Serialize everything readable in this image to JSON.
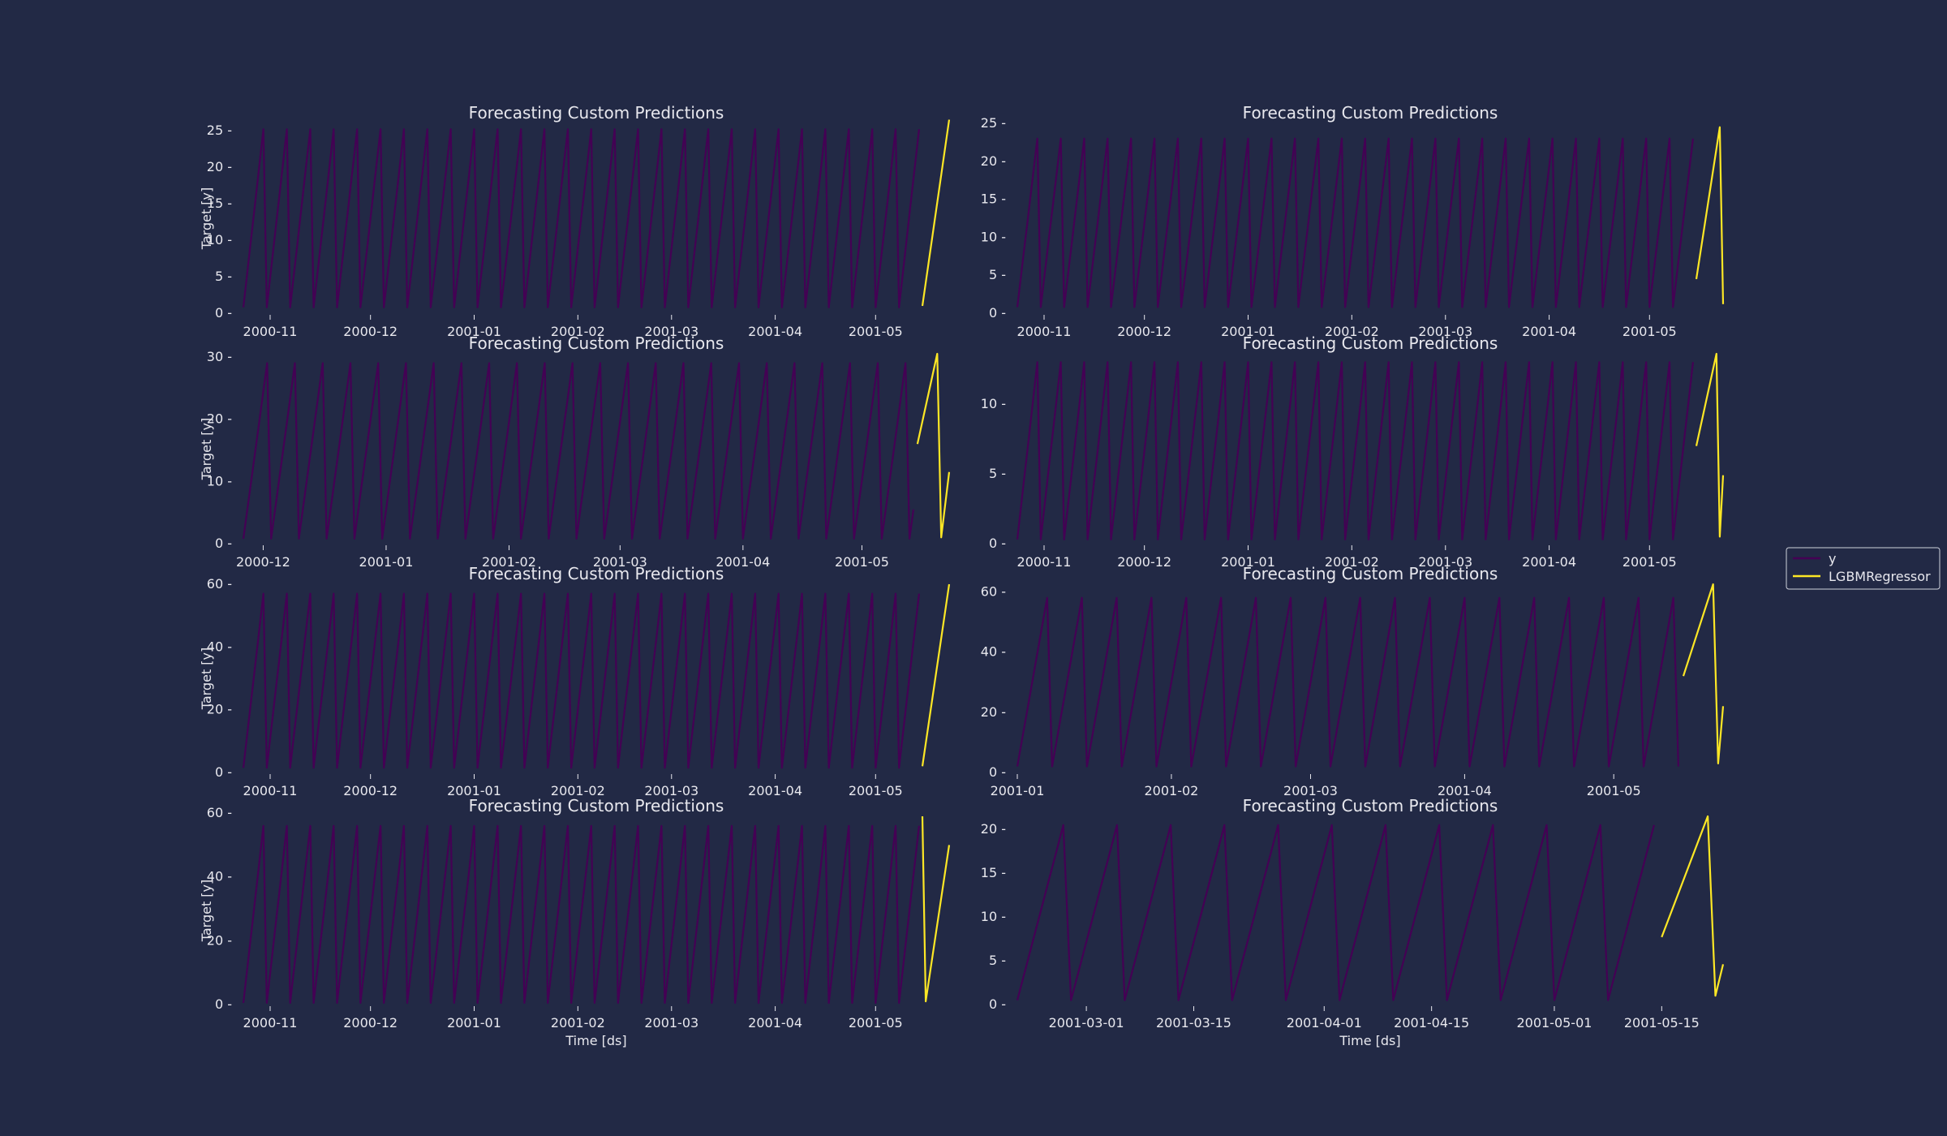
{
  "colors": {
    "background": "#222945",
    "series_y": "#440154",
    "series_pred": "#fde725",
    "text": "#e8e8ee"
  },
  "legend": {
    "placement": "right",
    "items": [
      "y",
      "LGBMRegressor"
    ]
  },
  "chart_data": [
    {
      "type": "line",
      "title": "Forecasting Custom Predictions",
      "xlabel": "",
      "ylabel": "Target [y]",
      "xlim": [
        "2000-10-24",
        "2001-05-23"
      ],
      "ylim": [
        0,
        26
      ],
      "xticks": [
        {
          "value": "2000-11-01",
          "label": "2000-11"
        },
        {
          "value": "2000-12-01",
          "label": "2000-12"
        },
        {
          "value": "2001-01-01",
          "label": "2001-01"
        },
        {
          "value": "2001-02-01",
          "label": "2001-02"
        },
        {
          "value": "2001-03-01",
          "label": "2001-03"
        },
        {
          "value": "2001-04-01",
          "label": "2001-04"
        },
        {
          "value": "2001-05-01",
          "label": "2001-05"
        }
      ],
      "yticks": [
        0,
        5,
        10,
        15,
        20,
        25
      ],
      "series": [
        {
          "name": "y",
          "start": "2000-10-24",
          "end": "2001-05-14",
          "period": 7,
          "min": 0.8,
          "max": 25.2
        },
        {
          "name": "LGBMRegressor",
          "x": [
            "2001-05-15",
            "2001-05-23"
          ],
          "values": [
            1.0,
            26.5
          ]
        }
      ]
    },
    {
      "type": "line",
      "title": "Forecasting Custom Predictions",
      "xlabel": "",
      "ylabel": "",
      "xlim": [
        "2000-10-24",
        "2001-05-23"
      ],
      "ylim": [
        0,
        25
      ],
      "xticks": [
        {
          "value": "2000-11-01",
          "label": "2000-11"
        },
        {
          "value": "2000-12-01",
          "label": "2000-12"
        },
        {
          "value": "2001-01-01",
          "label": "2001-01"
        },
        {
          "value": "2001-02-01",
          "label": "2001-02"
        },
        {
          "value": "2001-03-01",
          "label": "2001-03"
        },
        {
          "value": "2001-04-01",
          "label": "2001-04"
        },
        {
          "value": "2001-05-01",
          "label": "2001-05"
        }
      ],
      "yticks": [
        0,
        5,
        10,
        15,
        20,
        25
      ],
      "series": [
        {
          "name": "y",
          "start": "2000-10-24",
          "end": "2001-05-14",
          "period": 7,
          "min": 0.8,
          "max": 23.0
        },
        {
          "name": "LGBMRegressor",
          "x": [
            "2001-05-15",
            "2001-05-22",
            "2001-05-23"
          ],
          "values": [
            4.5,
            24.5,
            1.2
          ]
        }
      ]
    },
    {
      "type": "line",
      "title": "Forecasting Custom Predictions",
      "xlabel": "",
      "ylabel": "Target [y]",
      "xlim": [
        "2000-11-26",
        "2001-05-23"
      ],
      "ylim": [
        0,
        30.5
      ],
      "xticks": [
        {
          "value": "2000-12-01",
          "label": "2000-12"
        },
        {
          "value": "2001-01-01",
          "label": "2001-01"
        },
        {
          "value": "2001-02-01",
          "label": "2001-02"
        },
        {
          "value": "2001-03-01",
          "label": "2001-03"
        },
        {
          "value": "2001-04-01",
          "label": "2001-04"
        },
        {
          "value": "2001-05-01",
          "label": "2001-05"
        }
      ],
      "yticks": [
        0,
        10,
        20,
        30
      ],
      "series": [
        {
          "name": "y",
          "start": "2000-11-26",
          "end": "2001-05-14",
          "period": 7,
          "min": 0.8,
          "max": 29.0
        },
        {
          "name": "LGBMRegressor",
          "x": [
            "2001-05-15",
            "2001-05-20",
            "2001-05-21",
            "2001-05-23"
          ],
          "values": [
            16.0,
            30.5,
            1.0,
            11.5
          ]
        }
      ]
    },
    {
      "type": "line",
      "title": "Forecasting Custom Predictions",
      "xlabel": "",
      "ylabel": "",
      "xlim": [
        "2000-10-24",
        "2001-05-23"
      ],
      "ylim": [
        0,
        13.6
      ],
      "xticks": [
        {
          "value": "2000-11-01",
          "label": "2000-11"
        },
        {
          "value": "2000-12-01",
          "label": "2000-12"
        },
        {
          "value": "2001-01-01",
          "label": "2001-01"
        },
        {
          "value": "2001-02-01",
          "label": "2001-02"
        },
        {
          "value": "2001-03-01",
          "label": "2001-03"
        },
        {
          "value": "2001-04-01",
          "label": "2001-04"
        },
        {
          "value": "2001-05-01",
          "label": "2001-05"
        }
      ],
      "yticks": [
        0,
        5,
        10
      ],
      "series": [
        {
          "name": "y",
          "start": "2000-10-24",
          "end": "2001-05-14",
          "period": 7,
          "min": 0.3,
          "max": 13.0
        },
        {
          "name": "LGBMRegressor",
          "x": [
            "2001-05-15",
            "2001-05-21",
            "2001-05-22",
            "2001-05-23"
          ],
          "values": [
            7.0,
            13.6,
            0.5,
            4.9
          ]
        }
      ]
    },
    {
      "type": "line",
      "title": "Forecasting Custom Predictions",
      "xlabel": "",
      "ylabel": "Target [y]",
      "xlim": [
        "2000-10-24",
        "2001-05-23"
      ],
      "ylim": [
        0,
        60
      ],
      "xticks": [
        {
          "value": "2000-11-01",
          "label": "2000-11"
        },
        {
          "value": "2000-12-01",
          "label": "2000-12"
        },
        {
          "value": "2001-01-01",
          "label": "2001-01"
        },
        {
          "value": "2001-02-01",
          "label": "2001-02"
        },
        {
          "value": "2001-03-01",
          "label": "2001-03"
        },
        {
          "value": "2001-04-01",
          "label": "2001-04"
        },
        {
          "value": "2001-05-01",
          "label": "2001-05"
        }
      ],
      "yticks": [
        0,
        20,
        40,
        60
      ],
      "series": [
        {
          "name": "y",
          "start": "2000-10-24",
          "end": "2001-05-14",
          "period": 7,
          "min": 1.5,
          "max": 57.0
        },
        {
          "name": "LGBMRegressor",
          "x": [
            "2001-05-15",
            "2001-05-23"
          ],
          "values": [
            2.0,
            60.0
          ]
        }
      ]
    },
    {
      "type": "line",
      "title": "Forecasting Custom Predictions",
      "xlabel": "",
      "ylabel": "",
      "xlim": [
        "2001-01-01",
        "2001-05-23"
      ],
      "ylim": [
        0,
        62.5
      ],
      "xticks": [
        {
          "value": "2001-01-01",
          "label": "2001-01"
        },
        {
          "value": "2001-02-01",
          "label": "2001-02"
        },
        {
          "value": "2001-03-01",
          "label": "2001-03"
        },
        {
          "value": "2001-04-01",
          "label": "2001-04"
        },
        {
          "value": "2001-05-01",
          "label": "2001-05"
        }
      ],
      "yticks": [
        0,
        20,
        40,
        60
      ],
      "series": [
        {
          "name": "y",
          "start": "2001-01-01",
          "end": "2001-05-14",
          "period": 7,
          "min": 2.0,
          "max": 58.0
        },
        {
          "name": "LGBMRegressor",
          "x": [
            "2001-05-15",
            "2001-05-21",
            "2001-05-22",
            "2001-05-23"
          ],
          "values": [
            32.0,
            62.5,
            3.0,
            22.0
          ]
        }
      ]
    },
    {
      "type": "line",
      "title": "Forecasting Custom Predictions",
      "xlabel": "Time [ds]",
      "ylabel": "Target [y]",
      "xlim": [
        "2000-10-24",
        "2001-05-23"
      ],
      "ylim": [
        0,
        59
      ],
      "xticks": [
        {
          "value": "2000-11-01",
          "label": "2000-11"
        },
        {
          "value": "2000-12-01",
          "label": "2000-12"
        },
        {
          "value": "2001-01-01",
          "label": "2001-01"
        },
        {
          "value": "2001-02-01",
          "label": "2001-02"
        },
        {
          "value": "2001-03-01",
          "label": "2001-03"
        },
        {
          "value": "2001-04-01",
          "label": "2001-04"
        },
        {
          "value": "2001-05-01",
          "label": "2001-05"
        }
      ],
      "yticks": [
        0,
        20,
        40,
        60
      ],
      "series": [
        {
          "name": "y",
          "start": "2000-10-24",
          "end": "2001-05-14",
          "period": 7,
          "min": 0.5,
          "max": 56.0
        },
        {
          "name": "LGBMRegressor",
          "x": [
            "2001-05-15",
            "2001-05-16",
            "2001-05-23"
          ],
          "values": [
            59.0,
            1.0,
            50.0
          ]
        }
      ]
    },
    {
      "type": "line",
      "title": "Forecasting Custom Predictions",
      "xlabel": "Time [ds]",
      "ylabel": "",
      "xlim": [
        "2001-02-20",
        "2001-05-23"
      ],
      "ylim": [
        0,
        21.5
      ],
      "xticks": [
        {
          "value": "2001-03-01",
          "label": "2001-03-01"
        },
        {
          "value": "2001-03-15",
          "label": "2001-03-15"
        },
        {
          "value": "2001-04-01",
          "label": "2001-04-01"
        },
        {
          "value": "2001-04-15",
          "label": "2001-04-15"
        },
        {
          "value": "2001-05-01",
          "label": "2001-05-01"
        },
        {
          "value": "2001-05-15",
          "label": "2001-05-15"
        }
      ],
      "yticks": [
        0,
        5,
        10,
        15,
        20
      ],
      "series": [
        {
          "name": "y",
          "start": "2001-02-20",
          "end": "2001-05-14",
          "period": 7,
          "min": 0.5,
          "max": 20.5
        },
        {
          "name": "LGBMRegressor",
          "x": [
            "2001-05-15",
            "2001-05-21",
            "2001-05-22",
            "2001-05-23"
          ],
          "values": [
            7.7,
            21.5,
            1.0,
            4.6
          ]
        }
      ]
    }
  ]
}
